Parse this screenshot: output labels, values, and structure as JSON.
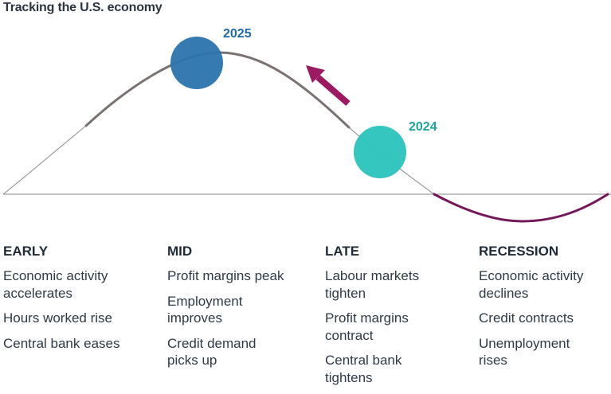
{
  "title": "Tracking the U.S. economy",
  "markers": [
    {
      "label": "2025",
      "phase": "MID",
      "color": "#2a73ad",
      "label_color": "#1f6aa8"
    },
    {
      "label": "2024",
      "phase": "LATE",
      "color": "#2ec4bd",
      "label_color": "#1aa69f"
    }
  ],
  "arrow": {
    "direction": "from 2024 toward 2025",
    "color": "#9c1a62"
  },
  "colors": {
    "curve_main": "#7a7270",
    "curve_recession": "#73195a",
    "baseline": "#8a8a8a"
  },
  "phases": [
    {
      "name": "EARLY",
      "items": [
        "Economic activity accelerates",
        "Hours worked rise",
        "Central bank eases"
      ]
    },
    {
      "name": "MID",
      "items": [
        "Profit margins peak",
        "Employment improves",
        "Credit demand picks up"
      ]
    },
    {
      "name": "LATE",
      "items": [
        "Labour markets tighten",
        "Profit margins contract",
        "Central bank tightens"
      ]
    },
    {
      "name": "RECESSION",
      "items": [
        "Economic activity declines",
        "Credit contracts",
        "Unemployment rises"
      ]
    }
  ]
}
